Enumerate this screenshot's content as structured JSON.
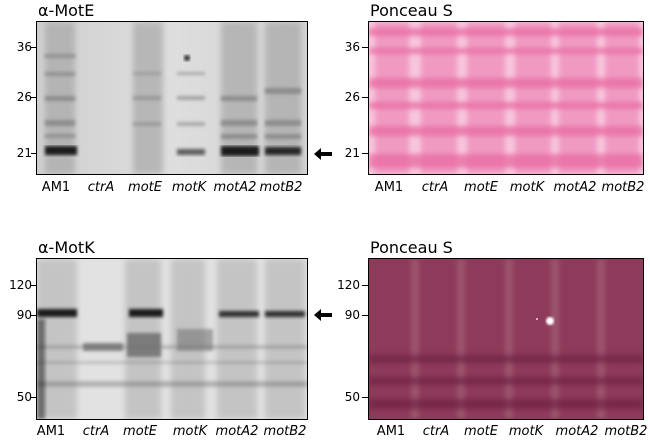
{
  "panels": [
    {
      "title": "α-MotE",
      "markers": [
        "36",
        "26",
        "21"
      ],
      "lanes": [
        {
          "label": "AM1",
          "italic": false
        },
        {
          "label": "ctrA",
          "italic": true
        },
        {
          "label": "motE",
          "italic": true
        },
        {
          "label": "motK",
          "italic": true
        },
        {
          "label": "motA2",
          "italic": true
        },
        {
          "label": "motB2",
          "italic": true
        }
      ],
      "arrow": true
    },
    {
      "title": "Ponceau S",
      "markers": [
        "36",
        "26",
        "21"
      ],
      "lanes": [
        {
          "label": "AM1",
          "italic": false
        },
        {
          "label": "ctrA",
          "italic": true
        },
        {
          "label": "motE",
          "italic": true
        },
        {
          "label": "motK",
          "italic": true
        },
        {
          "label": "motA2",
          "italic": true
        },
        {
          "label": "motB2",
          "italic": true
        }
      ],
      "arrow": false
    },
    {
      "title": "α-MotK",
      "markers": [
        "120",
        "90",
        "50"
      ],
      "lanes": [
        {
          "label": "AM1",
          "italic": false
        },
        {
          "label": "ctrA",
          "italic": true
        },
        {
          "label": "motE",
          "italic": true
        },
        {
          "label": "motK",
          "italic": true
        },
        {
          "label": "motA2",
          "italic": true
        },
        {
          "label": "motB2",
          "italic": true
        }
      ],
      "arrow": true
    },
    {
      "title": "Ponceau S",
      "markers": [
        "120",
        "90",
        "50"
      ],
      "lanes": [
        {
          "label": "AM1",
          "italic": false
        },
        {
          "label": "ctrA",
          "italic": true
        },
        {
          "label": "motE",
          "italic": true
        },
        {
          "label": "motK",
          "italic": true
        },
        {
          "label": "motA2",
          "italic": true
        },
        {
          "label": "motB2",
          "italic": true
        }
      ],
      "arrow": false
    }
  ],
  "colors": {
    "blot_gray_bg": "#d9d9d9",
    "band_dark": "#1a1a1a",
    "ponceau_light_bg": "#f7c6dc",
    "ponceau_light_band": "#ee7fb0",
    "ponceau_dark_bg": "#8e3a5a",
    "ponceau_dark_band": "#6a1f3c"
  }
}
